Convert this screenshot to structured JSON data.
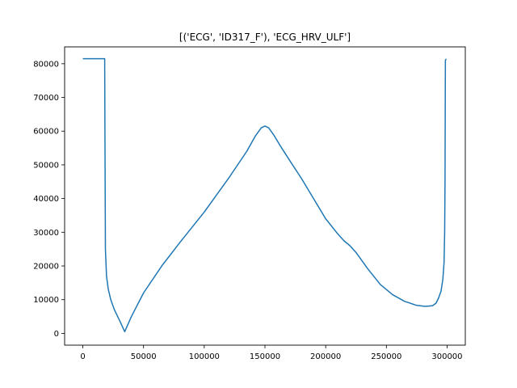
{
  "chart_data": {
    "type": "line",
    "title": "[('ECG', 'ID317_F'), 'ECG_HRV_ULF']",
    "xlabel": "",
    "ylabel": "",
    "xlim": [
      -15000,
      315000
    ],
    "ylim": [
      -3500,
      85000
    ],
    "grid": false,
    "legend": "none",
    "line_color": "#1f77b4",
    "x_ticks": [
      {
        "value": 0,
        "label": "0"
      },
      {
        "value": 50000,
        "label": "50000"
      },
      {
        "value": 100000,
        "label": "100000"
      },
      {
        "value": 150000,
        "label": "150000"
      },
      {
        "value": 200000,
        "label": "200000"
      },
      {
        "value": 250000,
        "label": "250000"
      },
      {
        "value": 300000,
        "label": "300000"
      }
    ],
    "y_ticks": [
      {
        "value": 0,
        "label": "0"
      },
      {
        "value": 10000,
        "label": "10000"
      },
      {
        "value": 20000,
        "label": "20000"
      },
      {
        "value": 30000,
        "label": "30000"
      },
      {
        "value": 40000,
        "label": "40000"
      },
      {
        "value": 50000,
        "label": "50000"
      },
      {
        "value": 60000,
        "label": "60000"
      },
      {
        "value": 70000,
        "label": "70000"
      },
      {
        "value": 80000,
        "label": "80000"
      }
    ],
    "series": [
      {
        "x": [
          0,
          17000,
          18000,
          18200,
          18600,
          19500,
          21000,
          23000,
          26000,
          30000,
          34500,
          40000,
          50000,
          65000,
          80000,
          100000,
          120000,
          135000,
          142000,
          147000,
          150000,
          153000,
          157000,
          162000,
          170000,
          180000,
          190000,
          200000,
          210000,
          215000,
          220000,
          225000,
          235000,
          245000,
          255000,
          265000,
          275000,
          282000,
          288000,
          291000,
          293000,
          295000,
          296500,
          297500,
          298000,
          298300,
          298600,
          299000,
          299500
        ],
        "y": [
          81500,
          81500,
          81500,
          60000,
          25000,
          17000,
          13000,
          10000,
          7000,
          4000,
          500,
          5000,
          12000,
          20000,
          27000,
          36000,
          46000,
          54000,
          58500,
          61000,
          61500,
          61000,
          59000,
          56000,
          51500,
          46000,
          40000,
          34000,
          29500,
          27500,
          26000,
          24000,
          19000,
          14500,
          11500,
          9500,
          8300,
          8000,
          8200,
          9000,
          10500,
          12500,
          16000,
          21000,
          30000,
          45000,
          81000,
          81300,
          81300
        ]
      }
    ]
  }
}
